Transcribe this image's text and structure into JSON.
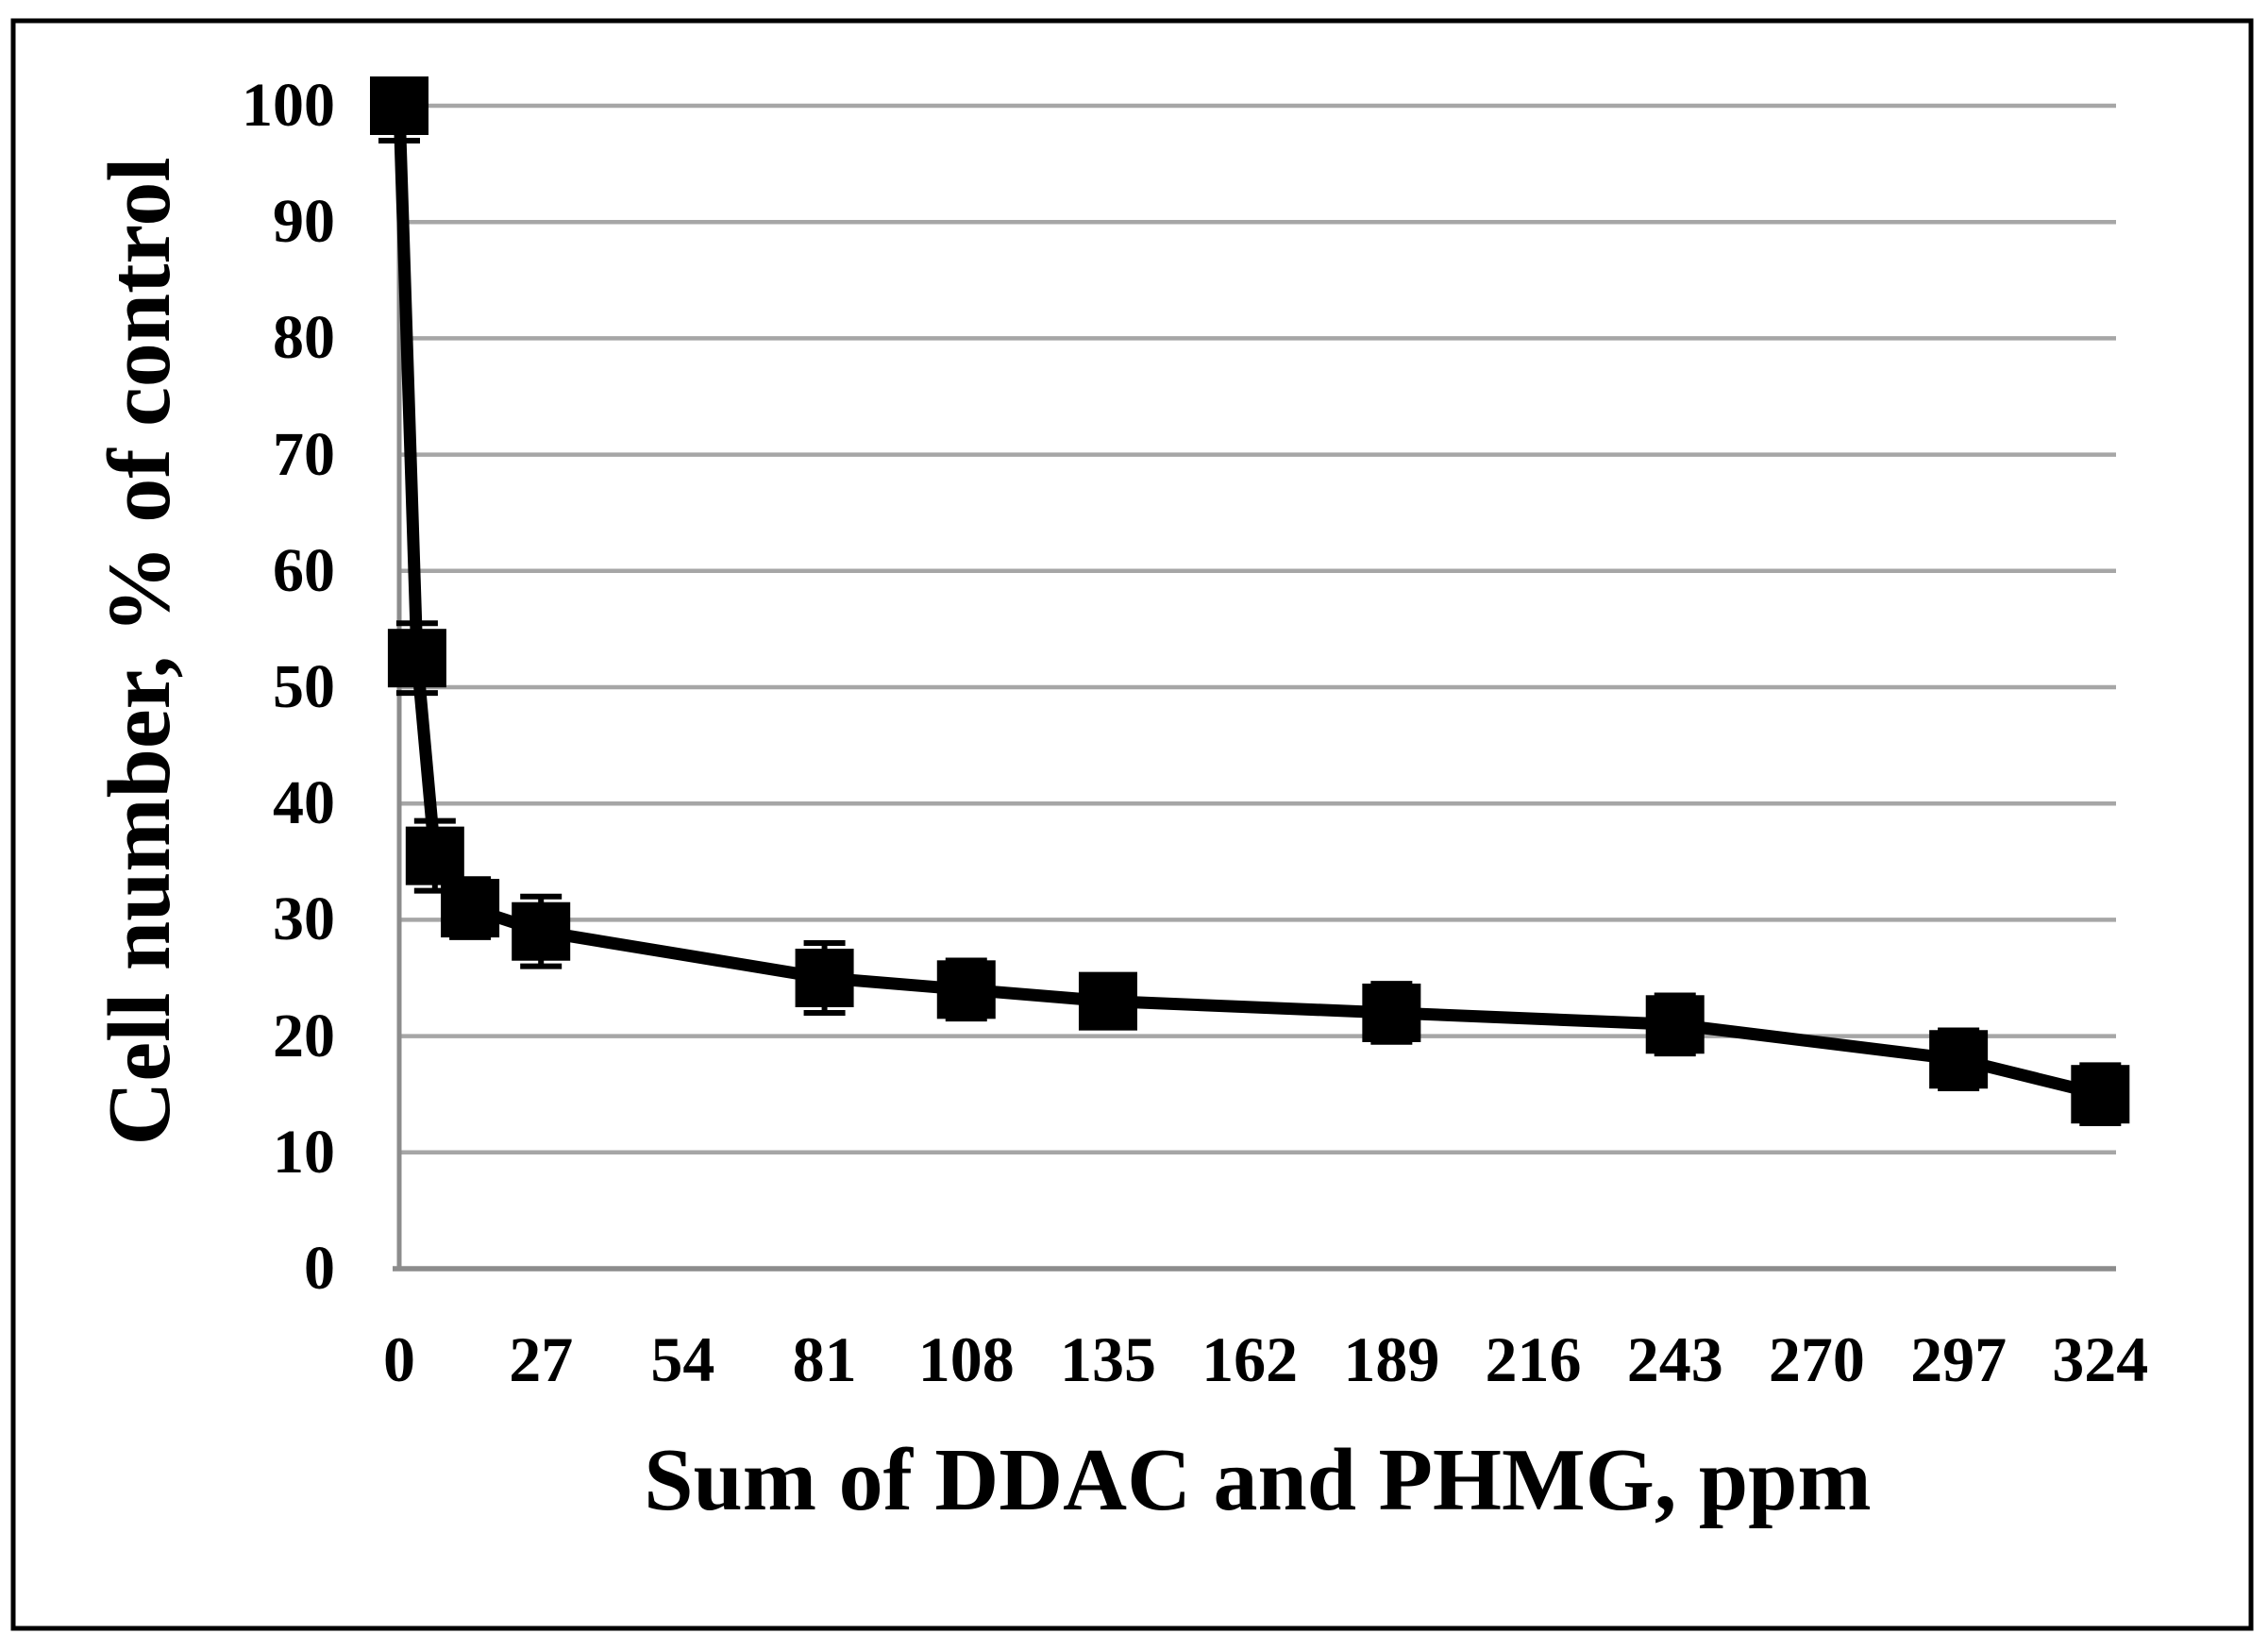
{
  "figure": {
    "background": "#ffffff",
    "border_color": "#000000"
  },
  "chart_data": {
    "type": "line",
    "title": "",
    "xlabel": "Sum of DDAC and PHMG, ppm",
    "ylabel": "Cell number, % of control",
    "x_ticks": [
      0,
      27,
      54,
      81,
      108,
      135,
      162,
      189,
      216,
      243,
      270,
      297,
      324
    ],
    "y_ticks": [
      0,
      10,
      20,
      30,
      40,
      50,
      60,
      70,
      80,
      90,
      100
    ],
    "xlim": [
      0,
      327
    ],
    "ylim": [
      0,
      100
    ],
    "grid": "horizontal",
    "legend": "none",
    "gridline_color": "#a6a6a6",
    "axis_color": "#8c8c8c",
    "text_color": "#000000",
    "series": [
      {
        "name": "Cell number, % of control",
        "marker": "square",
        "color": "#000000",
        "points": [
          {
            "x": 0,
            "y": 100,
            "err": 3,
            "err_dir": "minus"
          },
          {
            "x": 3.4,
            "y": 52.5,
            "err": 3,
            "err_dir": "both"
          },
          {
            "x": 6.8,
            "y": 35.5,
            "err": 3,
            "err_dir": "both"
          },
          {
            "x": 13.5,
            "y": 31,
            "err": 2.5,
            "err_dir": "both"
          },
          {
            "x": 27,
            "y": 29,
            "err": 3,
            "err_dir": "both"
          },
          {
            "x": 81,
            "y": 25,
            "err": 3,
            "err_dir": "both"
          },
          {
            "x": 108,
            "y": 24,
            "err": 2.5,
            "err_dir": "both"
          },
          {
            "x": 135,
            "y": 23,
            "err": 2,
            "err_dir": "both"
          },
          {
            "x": 189,
            "y": 22,
            "err": 2.5,
            "err_dir": "both"
          },
          {
            "x": 243,
            "y": 21,
            "err": 2.5,
            "err_dir": "both"
          },
          {
            "x": 297,
            "y": 18,
            "err": 2.5,
            "err_dir": "both"
          },
          {
            "x": 324,
            "y": 15,
            "err": 2.5,
            "err_dir": "both"
          }
        ]
      }
    ]
  }
}
